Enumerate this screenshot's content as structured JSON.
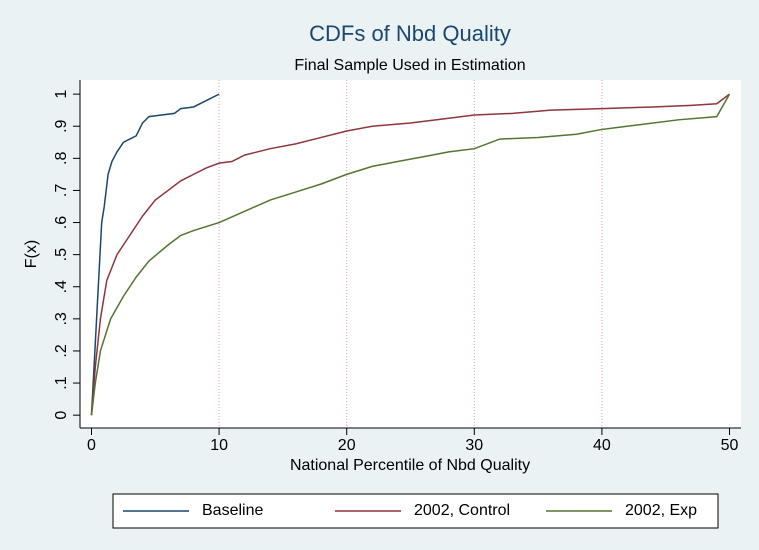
{
  "chart_data": {
    "type": "line",
    "title": "CDFs of Nbd Quality",
    "subtitle": "Final Sample Used in Estimation",
    "x_label": "National Percentile of Nbd Quality",
    "y_label": "F(x)",
    "xlim": [
      -0.9,
      50.9
    ],
    "xticks": [
      0,
      10,
      20,
      30,
      40,
      50
    ],
    "ylim": [
      -0.04,
      1.044
    ],
    "yticks": [
      0,
      {
        "value": 0.1,
        "label": ".1"
      },
      {
        "value": 0.2,
        "label": ".2"
      },
      {
        "value": 0.3,
        "label": ".3"
      },
      {
        "value": 0.4,
        "label": ".4"
      },
      {
        "value": 0.5,
        "label": ".5"
      },
      {
        "value": 0.6,
        "label": ".6"
      },
      {
        "value": 0.7,
        "label": ".7"
      },
      {
        "value": 0.8,
        "label": ".8"
      },
      {
        "value": 0.9,
        "label": ".9"
      },
      1
    ],
    "xgrid": true,
    "legend": "bottom",
    "series": [
      {
        "name": "Baseline",
        "color": "#1a476f",
        "x": [
          0,
          0.2,
          0.4,
          0.6,
          0.8,
          1.0,
          1.3,
          1.6,
          2,
          2.5,
          3,
          3.5,
          4,
          4.5,
          5.5,
          6.5,
          7,
          8,
          9,
          10
        ],
        "values": [
          0,
          0.15,
          0.3,
          0.45,
          0.6,
          0.65,
          0.75,
          0.79,
          0.82,
          0.85,
          0.86,
          0.87,
          0.91,
          0.93,
          0.935,
          0.94,
          0.955,
          0.96,
          0.98,
          1.0
        ]
      },
      {
        "name": "2002, Control",
        "color": "#90353b",
        "x": [
          0,
          0.3,
          0.7,
          1.2,
          2,
          3,
          4,
          5,
          6,
          7,
          8,
          9,
          10,
          11,
          12,
          14,
          16,
          18,
          20,
          22,
          25,
          28,
          30,
          33,
          36,
          40,
          44,
          47,
          49,
          50
        ],
        "values": [
          0,
          0.15,
          0.3,
          0.42,
          0.5,
          0.56,
          0.62,
          0.67,
          0.7,
          0.73,
          0.75,
          0.77,
          0.785,
          0.79,
          0.81,
          0.83,
          0.845,
          0.865,
          0.885,
          0.9,
          0.91,
          0.925,
          0.935,
          0.94,
          0.95,
          0.955,
          0.96,
          0.965,
          0.97,
          1.0
        ]
      },
      {
        "name": "2002, Exp",
        "color": "#55752f",
        "x": [
          0,
          0.3,
          0.7,
          1.5,
          2.5,
          3.5,
          4.5,
          6,
          7,
          8,
          10,
          12,
          14,
          16,
          18,
          20,
          22,
          24,
          26,
          28,
          30,
          32,
          35,
          38,
          40,
          43,
          46,
          49,
          50
        ],
        "values": [
          0,
          0.1,
          0.2,
          0.3,
          0.37,
          0.43,
          0.48,
          0.53,
          0.56,
          0.575,
          0.6,
          0.635,
          0.67,
          0.695,
          0.72,
          0.75,
          0.775,
          0.79,
          0.805,
          0.82,
          0.83,
          0.86,
          0.865,
          0.875,
          0.89,
          0.905,
          0.92,
          0.93,
          1.0
        ]
      }
    ]
  }
}
